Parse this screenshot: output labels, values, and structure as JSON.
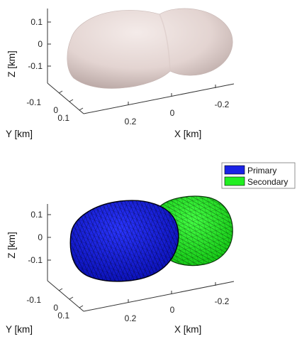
{
  "chart_data": [
    {
      "type": "3d-surface",
      "title": "",
      "xlabel": "X [km]",
      "ylabel": "Y [km]",
      "zlabel": "Z [km]",
      "x_ticks": [
        "0.2",
        "0",
        "-0.2"
      ],
      "y_ticks": [
        "-0.1",
        "0",
        "0.1"
      ],
      "z_ticks": [
        "0.1",
        "0",
        "-0.1"
      ],
      "grid": false,
      "legend": [],
      "surface_color": "#e4d6d3"
    },
    {
      "type": "3d-surface",
      "title": "",
      "xlabel": "X [km]",
      "ylabel": "Y [km]",
      "zlabel": "Z [km]",
      "x_ticks": [
        "0.2",
        "0",
        "-0.2"
      ],
      "y_ticks": [
        "-0.1",
        "0",
        "0.1"
      ],
      "z_ticks": [
        "0.1",
        "0",
        "-0.1"
      ],
      "grid": false,
      "legend_position": "top-right",
      "series": [
        {
          "name": "Primary",
          "color": "#1a22e6"
        },
        {
          "name": "Secondary",
          "color": "#22ee22"
        }
      ]
    }
  ]
}
